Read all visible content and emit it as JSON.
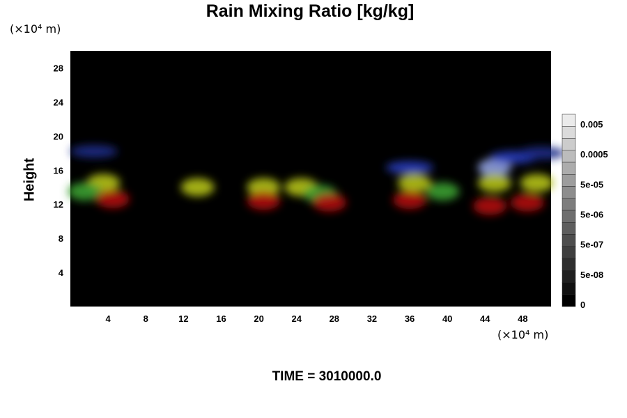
{
  "chart_data": {
    "type": "heatmap",
    "title": "Rain Mixing Ratio [kg/kg]",
    "ylabel": "Height",
    "xlabel": "",
    "x_unit": "(×10⁴ m)",
    "y_unit": "(×10⁴ m)",
    "x_ticks": [
      "4",
      "8",
      "12",
      "16",
      "20",
      "24",
      "28",
      "32",
      "36",
      "40",
      "44",
      "48"
    ],
    "y_ticks": [
      "4",
      "8",
      "12",
      "16",
      "20",
      "24",
      "28"
    ],
    "xlim": [
      0,
      51
    ],
    "ylim": [
      0,
      30
    ],
    "colorbar": {
      "labels": [
        "0.005",
        "0.0005",
        "5e-05",
        "5e-06",
        "5e-07",
        "5e-08",
        "0"
      ],
      "levels": 16,
      "range": [
        "0",
        "0.005"
      ]
    },
    "background_color": "#000000",
    "blobs": [
      {
        "color": "#8fa0e0",
        "x": 45,
        "y": 16.3
      },
      {
        "color": "#2a3fc0",
        "x": 47,
        "y": 17.5
      },
      {
        "color": "#2a3fc0",
        "x": 36,
        "y": 16.3
      },
      {
        "color": "#1d2b8a",
        "x": 2.5,
        "y": 18.2
      },
      {
        "color": "#1d2b8a",
        "x": 50,
        "y": 18
      },
      {
        "color": "#b5c21a",
        "x": 3.5,
        "y": 14.5
      },
      {
        "color": "#b5c21a",
        "x": 13.5,
        "y": 14
      },
      {
        "color": "#b5c21a",
        "x": 20.5,
        "y": 14
      },
      {
        "color": "#b5c21a",
        "x": 24.5,
        "y": 14
      },
      {
        "color": "#b5c21a",
        "x": 36.5,
        "y": 14.5
      },
      {
        "color": "#b5c21a",
        "x": 45,
        "y": 14.5
      },
      {
        "color": "#b5c21a",
        "x": 49.5,
        "y": 14.5
      },
      {
        "color": "#3aa030",
        "x": 1.5,
        "y": 13.5
      },
      {
        "color": "#3aa030",
        "x": 26.5,
        "y": 13.2
      },
      {
        "color": "#3aa030",
        "x": 39.5,
        "y": 13.5
      },
      {
        "color": "#b01010",
        "x": 4.5,
        "y": 12.6
      },
      {
        "color": "#b01010",
        "x": 20.5,
        "y": 12.4
      },
      {
        "color": "#b01010",
        "x": 27.5,
        "y": 12.2
      },
      {
        "color": "#b01010",
        "x": 36,
        "y": 12.5
      },
      {
        "color": "#b01010",
        "x": 44.5,
        "y": 11.8
      },
      {
        "color": "#b01010",
        "x": 48.5,
        "y": 12.2
      }
    ]
  },
  "footer": "TIME = 3010000.0"
}
